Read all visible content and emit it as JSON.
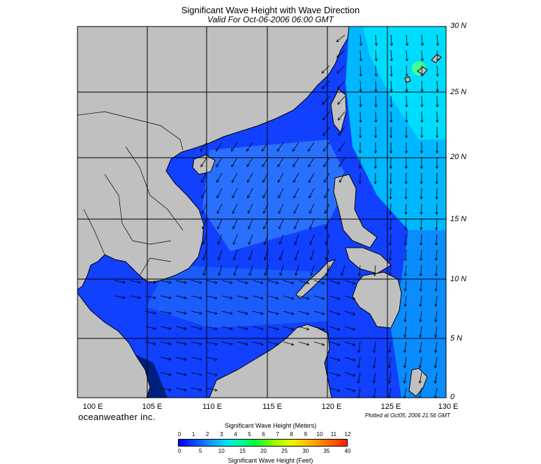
{
  "header": {
    "title": "Significant Wave Height with Wave Direction",
    "valid": "Valid For Oct-06-2006 06:00 GMT"
  },
  "map": {
    "lat_labels": [
      "30 N",
      "25 N",
      "20 N",
      "15 N",
      "10 N",
      "5 N",
      "0"
    ],
    "lon_labels": [
      "100 E",
      "105 E",
      "110 E",
      "115 E",
      "120 E",
      "125 E",
      "130 E"
    ],
    "colors": {
      "land": "#c0c0c0",
      "deep_water": "#0000ff",
      "mid_water": "#1a6cff",
      "high_water": "#00e0ff",
      "grid": "#000000"
    }
  },
  "footer": {
    "brand": "oceanweather inc.",
    "plotted": "Plotted at Oct05, 2006 21:56 GMT"
  },
  "colorbar": {
    "title_meters": "Significant Wave Height (Meters)",
    "title_feet": "Significant Wave Height (Feet)",
    "meter_ticks": [
      "0",
      "1",
      "2",
      "3",
      "4",
      "5",
      "6",
      "7",
      "8",
      "9",
      "10",
      "11",
      "12"
    ],
    "feet_ticks": [
      "0",
      "5",
      "10",
      "15",
      "20",
      "25",
      "30",
      "35",
      "40"
    ]
  }
}
